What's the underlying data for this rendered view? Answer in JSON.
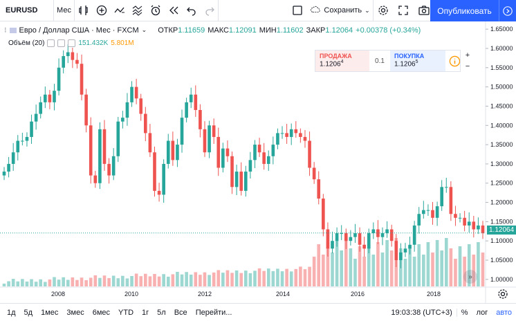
{
  "toolbar": {
    "symbol": "EURUSD",
    "interval": "Мес",
    "save_label": "Сохранить",
    "publish_label": "Опубликовать"
  },
  "legend": {
    "title": "Евро / Доллар США · Мес · FXCM",
    "open_label": "ОТКР",
    "open": "1.11659",
    "high_label": "МАКС",
    "high": "1.12091",
    "low_label": "МИН",
    "low": "1.11602",
    "close_label": "ЗАКР",
    "close": "1.12064",
    "change": "+0.00378 (+0.34%)"
  },
  "volume_legend": {
    "label": "Объём (20)",
    "v1": "151.432K",
    "v2": "5.801M"
  },
  "trade": {
    "sell_label": "ПРОДАЖА",
    "sell_price": "1.1206",
    "sell_sup": "4",
    "qty": "0.1",
    "buy_label": "ПОКУПКА",
    "buy_price": "1.1206",
    "buy_sup": "5",
    "plus": "+",
    "minus": "−"
  },
  "current_price": "1.12064",
  "bottom": {
    "ranges": [
      "1д",
      "5д",
      "1мес",
      "3мес",
      "6мес",
      "YTD",
      "1г",
      "5л",
      "Все",
      "Перейти..."
    ],
    "time": "19:03:38 (UTC+3)",
    "percent": "%",
    "log": "лог",
    "auto": "авто"
  },
  "chart_data": {
    "type": "candlestick",
    "x_axis_labels": [
      "2008",
      "2010",
      "2012",
      "2014",
      "2016",
      "2018"
    ],
    "y_axis_ticks": [
      "1.65000",
      "1.60000",
      "1.55000",
      "1.50000",
      "1.45000",
      "1.40000",
      "1.35000",
      "1.30000",
      "1.25000",
      "1.20000",
      "1.15000",
      "1.10000",
      "1.05000",
      "1.00000"
    ],
    "ylim": [
      0.98,
      1.67
    ],
    "up_color": "#26a69a",
    "down_color": "#ef5350",
    "last_close": 1.12064,
    "closes": [
      1.28,
      1.3,
      1.33,
      1.36,
      1.36,
      1.37,
      1.41,
      1.43,
      1.46,
      1.48,
      1.46,
      1.49,
      1.55,
      1.58,
      1.59,
      1.57,
      1.56,
      1.48,
      1.4,
      1.27,
      1.25,
      1.39,
      1.3,
      1.27,
      1.32,
      1.41,
      1.42,
      1.46,
      1.5,
      1.47,
      1.43,
      1.38,
      1.33,
      1.23,
      1.22,
      1.3,
      1.36,
      1.31,
      1.35,
      1.42,
      1.46,
      1.48,
      1.44,
      1.39,
      1.33,
      1.4,
      1.37,
      1.29,
      1.34,
      1.32,
      1.24,
      1.28,
      1.23,
      1.28,
      1.31,
      1.35,
      1.33,
      1.3,
      1.32,
      1.35,
      1.38,
      1.38,
      1.37,
      1.39,
      1.38,
      1.37,
      1.36,
      1.29,
      1.26,
      1.21,
      1.13,
      1.08,
      1.1,
      1.12,
      1.12,
      1.1,
      1.11,
      1.12,
      1.09,
      1.08,
      1.12,
      1.13,
      1.11,
      1.12,
      1.13,
      1.1,
      1.05,
      1.07,
      1.08,
      1.09,
      1.14,
      1.17,
      1.18,
      1.18,
      1.16,
      1.19,
      1.24,
      1.24,
      1.17,
      1.16,
      1.16,
      1.14,
      1.15,
      1.13,
      1.14,
      1.12
    ]
  }
}
